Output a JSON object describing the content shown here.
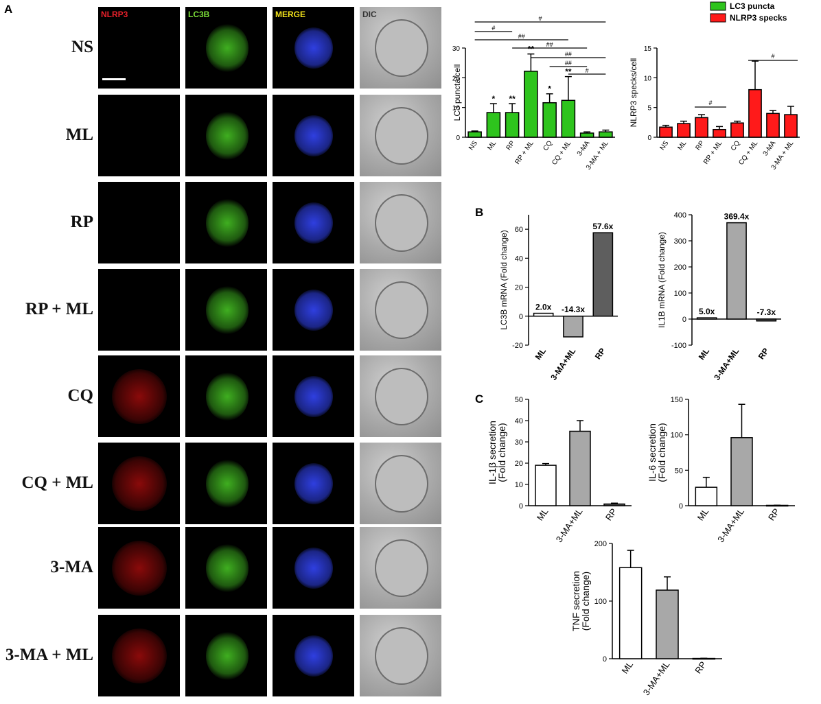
{
  "panel_labels": {
    "a": "A",
    "b": "B",
    "c": "C"
  },
  "microscopy": {
    "columns": [
      {
        "label": "NLRP3",
        "color": "#e8212b"
      },
      {
        "label": "LC3B",
        "color": "#7ee33a"
      },
      {
        "label": "MERGE",
        "color": "#f2e21a"
      },
      {
        "label": "DIC",
        "color": "#333333"
      }
    ],
    "rows": [
      "NS",
      "ML",
      "RP",
      "RP + ML",
      "CQ",
      "CQ + ML",
      "3-MA",
      "3-MA + ML"
    ]
  },
  "colors": {
    "lc3": "#2ec41d",
    "nlrp3": "#ff1a1a",
    "gray": "#a8a8a8",
    "darkgray": "#5e5e5e",
    "white": "#ffffff"
  },
  "chart_data": [
    {
      "id": "lc3-puncta",
      "type": "bar",
      "categories": [
        "NS",
        "ML",
        "RP",
        "RP + ML",
        "CQ",
        "CQ + ML",
        "3-MA",
        "3-MA + ML"
      ],
      "series": [
        {
          "name": "LC3 puncta",
          "values": [
            1.8,
            8.3,
            8.3,
            22.2,
            11.6,
            12.4,
            1.4,
            1.8
          ],
          "errors": [
            0.3,
            3.0,
            3.0,
            5.8,
            3.0,
            8.0,
            0.4,
            0.6
          ]
        }
      ],
      "annotations": [
        "",
        "*",
        "**",
        "**",
        "*",
        "**",
        "",
        ""
      ],
      "comparisons": [
        {
          "from": 0,
          "to": 7,
          "label": "#"
        },
        {
          "from": 0,
          "to": 2,
          "label": "#"
        },
        {
          "from": 0,
          "to": 5,
          "label": "##"
        },
        {
          "from": 2,
          "to": 6,
          "label": "##"
        },
        {
          "from": 3,
          "to": 7,
          "label": "##"
        },
        {
          "from": 4,
          "to": 6,
          "label": "##"
        },
        {
          "from": 5,
          "to": 7,
          "label": "#"
        }
      ],
      "ylabel": "LC3 puncta/cell",
      "ylim": [
        0,
        30
      ],
      "yticks": [
        0,
        10,
        20,
        30
      ],
      "legend": [
        "LC3 puncta",
        "NLRP3 specks"
      ],
      "legend_position": "top-right"
    },
    {
      "id": "nlrp3-specks",
      "type": "bar",
      "categories": [
        "NS",
        "ML",
        "RP",
        "RP + ML",
        "CQ",
        "CQ + ML",
        "3-MA",
        "3-MA + ML"
      ],
      "series": [
        {
          "name": "NLRP3 specks",
          "values": [
            1.7,
            2.3,
            3.3,
            1.3,
            2.4,
            8.0,
            4.0,
            3.8
          ],
          "errors": [
            0.3,
            0.4,
            0.5,
            0.5,
            0.3,
            4.8,
            0.5,
            1.4
          ]
        }
      ],
      "comparisons": [
        {
          "from": 2,
          "to": 3,
          "label": "#"
        },
        {
          "from": 5,
          "to": 7,
          "label": "#"
        }
      ],
      "ylabel": "NLRP3 specks/cell",
      "ylim": [
        0,
        15
      ],
      "yticks": [
        0,
        5,
        10,
        15
      ]
    },
    {
      "id": "lc3b-mrna",
      "type": "bar",
      "categories": [
        "ML",
        "3-MA+ML",
        "RP"
      ],
      "series": [
        {
          "values": [
            2.0,
            -14.3,
            57.6
          ]
        }
      ],
      "value_labels": [
        "2.0x",
        "-14.3x",
        "57.6x"
      ],
      "ylabel": "LC3B mRNA (Fold change)",
      "ylim": [
        -20,
        70
      ],
      "yticks": [
        -20,
        0,
        20,
        40,
        60
      ]
    },
    {
      "id": "il1b-mrna",
      "type": "bar",
      "categories": [
        "ML",
        "3-MA+ML",
        "RP"
      ],
      "series": [
        {
          "values": [
            5.0,
            369.4,
            -7.3
          ]
        }
      ],
      "value_labels": [
        "5.0x",
        "369.4x",
        "-7.3x"
      ],
      "ylabel": "IL1B mRNA (Fold change)",
      "ylim": [
        -100,
        400
      ],
      "yticks": [
        -100,
        0,
        100,
        200,
        300,
        400
      ]
    },
    {
      "id": "il1b-secretion",
      "type": "bar",
      "categories": [
        "ML",
        "3-MA+ML",
        "RP"
      ],
      "series": [
        {
          "values": [
            19,
            35,
            0.8
          ],
          "errors": [
            0.8,
            5,
            0.4
          ]
        }
      ],
      "ylabel": "IL-1β secretion (Fold change)",
      "ylim": [
        0,
        50
      ],
      "yticks": [
        0,
        10,
        20,
        30,
        40,
        50
      ]
    },
    {
      "id": "il6-secretion",
      "type": "bar",
      "categories": [
        "ML",
        "3-MA+ML",
        "RP"
      ],
      "series": [
        {
          "values": [
            26,
            96,
            0.5
          ],
          "errors": [
            14,
            47,
            0.2
          ]
        }
      ],
      "ylabel": "IL-6 secretion (Fold change)",
      "ylim": [
        0,
        150
      ],
      "yticks": [
        0,
        50,
        100,
        150
      ]
    },
    {
      "id": "tnf-secretion",
      "type": "bar",
      "categories": [
        "ML",
        "3-MA+ML",
        "RP"
      ],
      "series": [
        {
          "values": [
            158,
            119,
            0.5
          ],
          "errors": [
            30,
            23,
            0.3
          ]
        }
      ],
      "ylabel": "TNF secretion (Fold change)",
      "ylim": [
        0,
        200
      ],
      "yticks": [
        0,
        100,
        200
      ]
    }
  ]
}
